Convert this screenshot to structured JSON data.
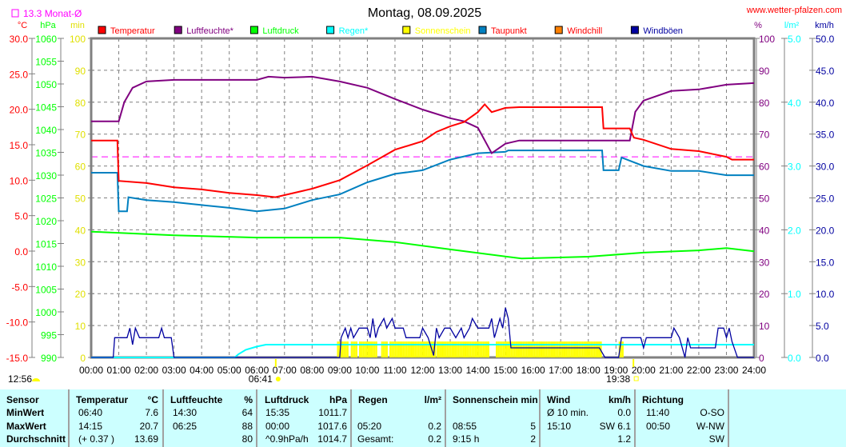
{
  "title": "Montag, 08.09.2025",
  "website": "www.wetter-pfalzen.com",
  "month_avg_label": "13.3 Monat-Ø",
  "colors": {
    "temp": "#ff0000",
    "humidity": "#800080",
    "pressure": "#00ff00",
    "rain": "#00ffff",
    "sun": "#ffff00",
    "dewpoint": "#0080c0",
    "windchill": "#ff8000",
    "gusts": "#0000a0",
    "month_avg": "#ff00ff",
    "grid": "#808080"
  },
  "chart_data": {
    "type": "line",
    "title": "Montag, 08.09.2025",
    "xlabel": "",
    "x_ticks": [
      "00:00",
      "01:00",
      "02:00",
      "03:00",
      "04:00",
      "05:00",
      "06:00",
      "07:00",
      "08:00",
      "09:00",
      "10:00",
      "11:00",
      "12:00",
      "13:00",
      "14:00",
      "15:00",
      "16:00",
      "17:00",
      "18:00",
      "19:00",
      "20:00",
      "21:00",
      "22:00",
      "23:00",
      "24:00"
    ],
    "xlim": [
      0,
      24
    ],
    "axes": {
      "temp": {
        "unit": "°C",
        "range": [
          -15,
          30
        ],
        "ticks": [
          "30.0",
          "25.0",
          "20.0",
          "15.0",
          "10.0",
          "5.0",
          "0.0",
          "-5.0",
          "-10.0",
          "-15.0"
        ]
      },
      "pressure": {
        "unit": "hPa",
        "range": [
          990,
          1060
        ],
        "ticks": [
          "1060",
          "1055",
          "1050",
          "1045",
          "1040",
          "1035",
          "1030",
          "1025",
          "1020",
          "1015",
          "1010",
          "1005",
          "1000",
          "995",
          "990"
        ]
      },
      "sun": {
        "unit": "min",
        "range": [
          0,
          100
        ],
        "ticks": [
          "100",
          "90",
          "80",
          "70",
          "60",
          "50",
          "40",
          "30",
          "20",
          "10",
          "0"
        ]
      },
      "humidity": {
        "unit": "%",
        "range": [
          0,
          100
        ],
        "ticks": [
          "100",
          "90",
          "80",
          "70",
          "60",
          "50",
          "40",
          "30",
          "20",
          "10",
          "0"
        ]
      },
      "rain": {
        "unit": "l/m²",
        "range": [
          0,
          5
        ],
        "ticks": [
          "5.0",
          "4.0",
          "3.0",
          "2.0",
          "1.0",
          "0.0"
        ]
      },
      "wind": {
        "unit": "km/h",
        "range": [
          0,
          50
        ],
        "ticks": [
          "50.0",
          "45.0",
          "40.0",
          "35.0",
          "30.0",
          "25.0",
          "20.0",
          "15.0",
          "10.0",
          "5.0",
          "0.0"
        ]
      }
    },
    "legend": [
      "Temperatur",
      "Luftfeuchte*",
      "Luftdruck",
      "Regen*",
      "Sonnenschein",
      "Taupunkt",
      "Windchill",
      "Windböen"
    ],
    "month_avg_temp": 13.3,
    "series": [
      {
        "name": "Temperatur",
        "axis": "temp",
        "points": [
          [
            0,
            15.6
          ],
          [
            0.95,
            15.6
          ],
          [
            1.0,
            9.9
          ],
          [
            2,
            9.6
          ],
          [
            3,
            9.0
          ],
          [
            4,
            8.7
          ],
          [
            5,
            8.2
          ],
          [
            6,
            7.9
          ],
          [
            6.67,
            7.6
          ],
          [
            7,
            7.9
          ],
          [
            8,
            8.8
          ],
          [
            9,
            10.0
          ],
          [
            10,
            12.1
          ],
          [
            11,
            14.3
          ],
          [
            12,
            15.5
          ],
          [
            12.5,
            16.8
          ],
          [
            13,
            17.6
          ],
          [
            13.5,
            18.2
          ],
          [
            14,
            19.6
          ],
          [
            14.25,
            20.7
          ],
          [
            14.5,
            19.6
          ],
          [
            15,
            20.2
          ],
          [
            15.5,
            20.3
          ],
          [
            18.5,
            20.3
          ],
          [
            18.55,
            17.3
          ],
          [
            19.5,
            17.3
          ],
          [
            19.65,
            16.0
          ],
          [
            20,
            15.7
          ],
          [
            21,
            14.4
          ],
          [
            22,
            14.1
          ],
          [
            23,
            13.3
          ],
          [
            23.2,
            12.9
          ],
          [
            24,
            12.9
          ]
        ]
      },
      {
        "name": "Luftfeuchte*",
        "axis": "humidity",
        "points": [
          [
            0,
            74
          ],
          [
            1.0,
            74
          ],
          [
            1.2,
            80
          ],
          [
            1.5,
            84.5
          ],
          [
            2,
            86.5
          ],
          [
            3,
            87
          ],
          [
            6,
            87
          ],
          [
            6.42,
            88
          ],
          [
            7,
            87.7
          ],
          [
            8,
            88
          ],
          [
            9,
            86.5
          ],
          [
            10,
            84.5
          ],
          [
            11,
            81
          ],
          [
            12,
            77.7
          ],
          [
            13,
            75
          ],
          [
            13.5,
            74
          ],
          [
            14,
            72
          ],
          [
            14.5,
            64
          ],
          [
            15,
            67
          ],
          [
            15.5,
            68
          ],
          [
            19.5,
            68
          ],
          [
            19.7,
            77
          ],
          [
            20,
            80.5
          ],
          [
            21,
            83.5
          ],
          [
            22,
            84
          ],
          [
            23,
            85.5
          ],
          [
            24,
            86
          ]
        ]
      },
      {
        "name": "Luftdruck",
        "axis": "pressure",
        "points": [
          [
            0,
            1017.6
          ],
          [
            3,
            1016.8
          ],
          [
            6,
            1016.3
          ],
          [
            9,
            1016.3
          ],
          [
            11,
            1015.3
          ],
          [
            13,
            1013.7
          ],
          [
            15.58,
            1011.7
          ],
          [
            18,
            1012.1
          ],
          [
            20,
            1013.0
          ],
          [
            22,
            1013.5
          ],
          [
            23,
            1014.0
          ],
          [
            24,
            1013.3
          ]
        ]
      },
      {
        "name": "Regen*",
        "axis": "rain",
        "points": [
          [
            0,
            0
          ],
          [
            5.2,
            0
          ],
          [
            5.33,
            0.05
          ],
          [
            5.6,
            0.12
          ],
          [
            6,
            0.17
          ],
          [
            6.33,
            0.2
          ],
          [
            24,
            0.2
          ]
        ]
      },
      {
        "name": "Taupunkt",
        "axis": "temp",
        "points": [
          [
            0,
            11.05
          ],
          [
            0.95,
            11.05
          ],
          [
            1.0,
            5.6
          ],
          [
            1.3,
            5.6
          ],
          [
            1.35,
            7.6
          ],
          [
            2,
            7.2
          ],
          [
            3,
            6.9
          ],
          [
            4,
            6.5
          ],
          [
            5,
            6.1
          ],
          [
            6,
            5.6
          ],
          [
            7,
            6.0
          ],
          [
            8,
            7.2
          ],
          [
            9,
            8.0
          ],
          [
            10,
            9.7
          ],
          [
            11,
            10.9
          ],
          [
            12,
            11.4
          ],
          [
            13,
            12.9
          ],
          [
            14,
            13.8
          ],
          [
            15,
            14.0
          ],
          [
            15.1,
            14.2
          ],
          [
            18.5,
            14.2
          ],
          [
            18.55,
            11.4
          ],
          [
            19.1,
            11.4
          ],
          [
            19.2,
            13.2
          ],
          [
            20,
            12.0
          ],
          [
            21,
            11.3
          ],
          [
            22,
            11.3
          ],
          [
            23,
            10.7
          ],
          [
            24,
            10.7
          ]
        ]
      },
      {
        "name": "Windböen",
        "axis": "wind",
        "points": [
          [
            0,
            0
          ],
          [
            0.8,
            0
          ],
          [
            0.85,
            3.1
          ],
          [
            1.3,
            3.1
          ],
          [
            1.4,
            4.6
          ],
          [
            1.5,
            2.0
          ],
          [
            1.6,
            4.6
          ],
          [
            1.75,
            3.1
          ],
          [
            2.45,
            3.1
          ],
          [
            2.55,
            4.6
          ],
          [
            2.65,
            3.1
          ],
          [
            2.9,
            3.1
          ],
          [
            3.0,
            0
          ],
          [
            9.0,
            0
          ],
          [
            9.05,
            3.1
          ],
          [
            9.2,
            4.6
          ],
          [
            9.3,
            3.1
          ],
          [
            9.4,
            4.6
          ],
          [
            9.5,
            3.1
          ],
          [
            9.7,
            4.6
          ],
          [
            10.0,
            4.6
          ],
          [
            10.1,
            3.1
          ],
          [
            10.2,
            6.1
          ],
          [
            10.3,
            3.1
          ],
          [
            10.4,
            4.6
          ],
          [
            10.6,
            6.1
          ],
          [
            10.7,
            4.6
          ],
          [
            10.9,
            6.1
          ],
          [
            11.0,
            4.6
          ],
          [
            11.3,
            4.6
          ],
          [
            11.4,
            3.1
          ],
          [
            11.9,
            3.1
          ],
          [
            12.0,
            4.6
          ],
          [
            12.2,
            3.1
          ],
          [
            12.4,
            0.3
          ],
          [
            12.5,
            4.6
          ],
          [
            12.6,
            3.1
          ],
          [
            12.8,
            4.6
          ],
          [
            13.0,
            4.6
          ],
          [
            13.2,
            3.1
          ],
          [
            13.4,
            4.6
          ],
          [
            13.5,
            3.1
          ],
          [
            13.7,
            4.6
          ],
          [
            13.8,
            6.1
          ],
          [
            14.0,
            4.6
          ],
          [
            14.4,
            4.6
          ],
          [
            14.5,
            6.1
          ],
          [
            14.6,
            3.1
          ],
          [
            14.8,
            6.1
          ],
          [
            14.9,
            4.6
          ],
          [
            15.0,
            7.8
          ],
          [
            15.1,
            6.1
          ],
          [
            15.2,
            1.5
          ],
          [
            18.4,
            1.5
          ],
          [
            18.6,
            0
          ],
          [
            19.1,
            0
          ],
          [
            19.2,
            3.1
          ],
          [
            19.9,
            3.1
          ],
          [
            20.0,
            1.5
          ],
          [
            20.1,
            3.1
          ],
          [
            21.0,
            3.1
          ],
          [
            21.1,
            4.6
          ],
          [
            21.3,
            3.1
          ],
          [
            21.5,
            0
          ],
          [
            21.6,
            3.1
          ],
          [
            21.7,
            1.5
          ],
          [
            22.6,
            1.5
          ],
          [
            22.7,
            4.6
          ],
          [
            22.9,
            4.6
          ],
          [
            23.0,
            3.1
          ],
          [
            23.1,
            4.6
          ],
          [
            23.2,
            2.5
          ],
          [
            23.4,
            0
          ],
          [
            24,
            0
          ]
        ]
      }
    ],
    "sunshine": {
      "axis": "sun",
      "minutes_per_bar": 5,
      "ranges": [
        [
          8.9,
          9.3
        ],
        [
          9.4,
          9.6
        ],
        [
          9.7,
          10.35
        ],
        [
          10.5,
          10.7
        ],
        [
          10.8,
          12.45
        ],
        [
          12.5,
          14.4
        ],
        [
          14.65,
          18.45
        ],
        [
          19.1,
          19.25
        ]
      ]
    },
    "sunrise": {
      "time": "06:41",
      "hour": 6.683
    },
    "sunset": {
      "time": "19:38",
      "hour": 19.633
    },
    "moon_label": "12:56"
  },
  "table": {
    "headers": {
      "sensor": "Sensor",
      "temp": "Temperatur",
      "temp_unit": "°C",
      "hum": "Luftfeuchte",
      "hum_unit": "%",
      "press": "Luftdruck",
      "press_unit": "hPa",
      "rain": "Regen",
      "rain_unit": "l/m²",
      "sun": "Sonnenschein min",
      "wind": "Wind",
      "wind_unit": "km/h",
      "dir": "Richtung"
    },
    "rows": [
      {
        "label": "MinWert",
        "temp_time": "06:40",
        "temp_val": "7.6",
        "hum_time": "14:30",
        "hum_val": "64",
        "press_time": "15:35",
        "press_val": "1011.7",
        "rain_time": "",
        "rain_val": "",
        "sun_time": "",
        "sun_val": "",
        "wind_time": "Ø 10 min.",
        "wind_val": "0.0",
        "dir_time": "11:40",
        "dir_val": "O-SO"
      },
      {
        "label": "MaxWert",
        "temp_time": "14:15",
        "temp_val": "20.7",
        "hum_time": "06:25",
        "hum_val": "88",
        "press_time": "00:00",
        "press_val": "1017.6",
        "rain_time": "05:20",
        "rain_val": "0.2",
        "sun_time": "08:55",
        "sun_val": "5",
        "wind_time": "15:10",
        "wind_val": "SW 6.1",
        "dir_time": "00:50",
        "dir_val": "W-NW"
      },
      {
        "label": "Durchschnitt",
        "temp_time": "(+ 0.37 )",
        "temp_val": "13.69",
        "hum_time": "",
        "hum_val": "80",
        "press_time": "^0.9hPa/h",
        "press_val": "1014.7",
        "rain_time": "Gesamt:",
        "rain_val": "0.2",
        "sun_time": "9:15 h",
        "sun_val": "2",
        "wind_time": "",
        "wind_val": "1.2",
        "dir_time": "",
        "dir_val": "SW"
      }
    ]
  }
}
